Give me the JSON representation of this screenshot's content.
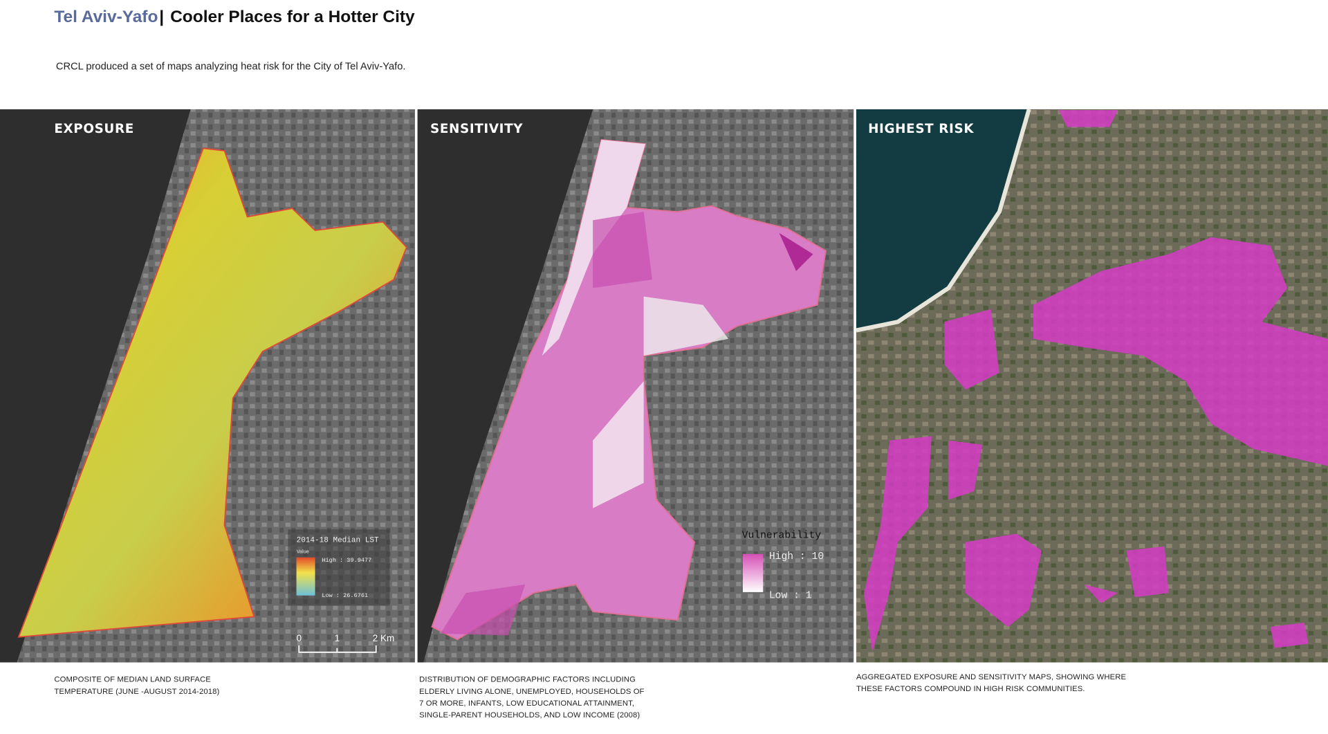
{
  "header": {
    "city": "Tel Aviv-Yafo",
    "separator": "|",
    "title": "Cooler Places for a Hotter City",
    "intro": "CRCL produced a set of maps analyzing heat risk for the City of Tel Aviv-Yafo."
  },
  "panels": [
    {
      "label": "EXPOSURE",
      "legend": {
        "title": "2014-18 Median LST",
        "subtitle": "Value",
        "high": "High : 39.9477",
        "low": "Low : 26.6761"
      },
      "scale": [
        "0",
        "1",
        "2 Km"
      ],
      "caption": [
        "COMPOSITE OF MEDIAN LAND SURFACE",
        "TEMPERATURE (JUNE -AUGUST 2014-2018)"
      ]
    },
    {
      "label": "SENSITIVITY",
      "legend": {
        "title": "Vulnerability",
        "high": "High : 10",
        "low": "Low : 1"
      },
      "caption": [
        "DISTRIBUTION OF DEMOGRAPHIC FACTORS INCLUDING",
        "ELDERLY LIVING ALONE, UNEMPLOYED, HOUSEHOLDS OF",
        "7 OR MORE, INFANTS, LOW EDUCATIONAL ATTAINMENT,",
        "SINGLE-PARENT HOUSEHOLDS, AND LOW INCOME (2008)"
      ]
    },
    {
      "label": "HIGHEST RISK",
      "caption": [
        "AGGREGATED EXPOSURE AND SENSITIVITY MAPS, SHOWING WHERE",
        "THESE FACTORS COMPOUND IN HIGH RISK COMMUNITIES."
      ]
    }
  ]
}
